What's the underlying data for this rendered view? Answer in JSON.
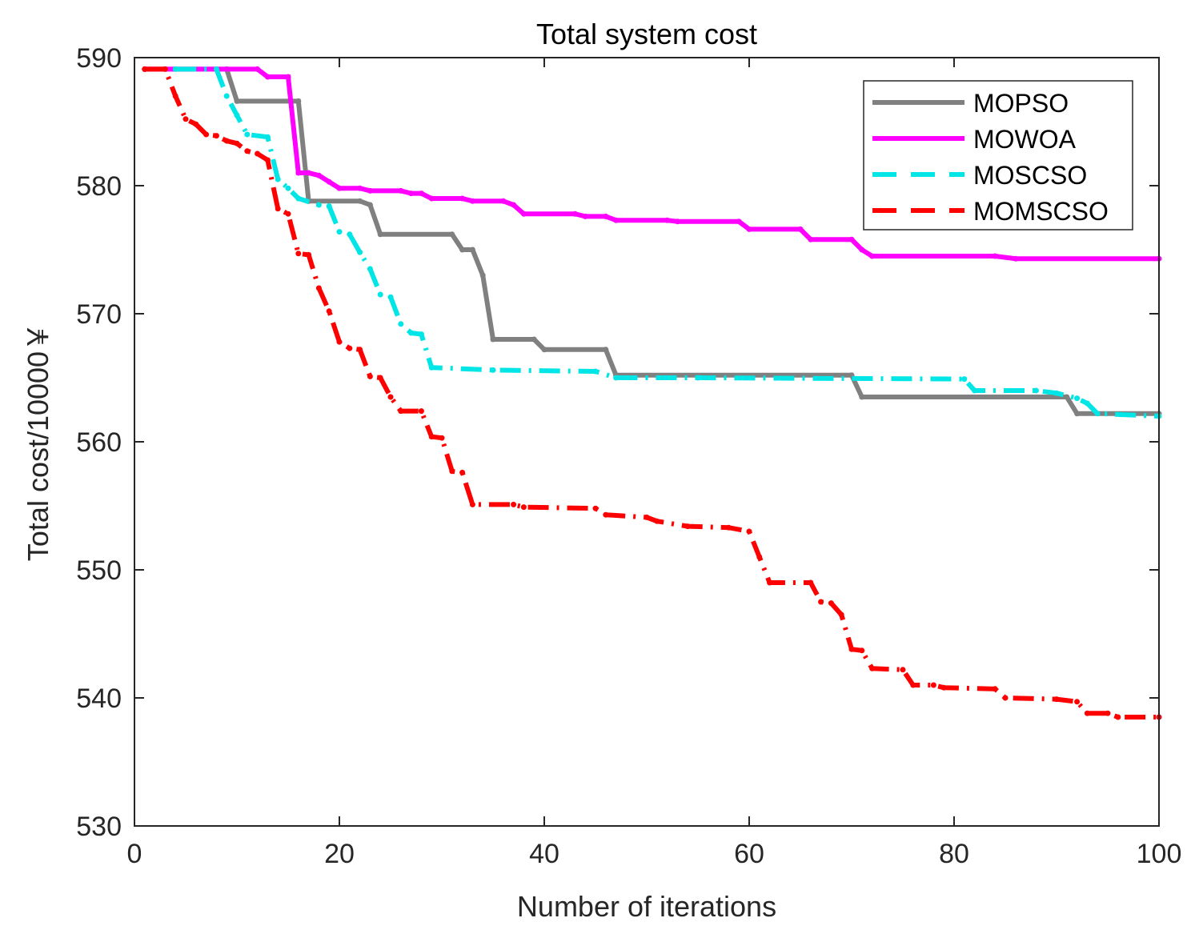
{
  "chart_data": {
    "type": "line",
    "title": "Total system cost",
    "xlabel": "Number of iterations",
    "ylabel": "Total cost/10000￥",
    "xlim": [
      0,
      100
    ],
    "ylim": [
      530,
      590
    ],
    "xticks": [
      0,
      20,
      40,
      60,
      80,
      100
    ],
    "yticks": [
      530,
      540,
      550,
      560,
      570,
      580,
      590
    ],
    "xtick_labels": [
      "0",
      "20",
      "40",
      "60",
      "80",
      "100"
    ],
    "ytick_labels": [
      "530",
      "540",
      "550",
      "560",
      "570",
      "580",
      "590"
    ],
    "legend_position": "top-right",
    "series": [
      {
        "name": "MOPSO",
        "color": "#808080",
        "dash": "solid",
        "points": [
          [
            1,
            589.1
          ],
          [
            9,
            589.1
          ],
          [
            10,
            586.6
          ],
          [
            16,
            586.6
          ],
          [
            17,
            578.8
          ],
          [
            22,
            578.8
          ],
          [
            23,
            578.5
          ],
          [
            24,
            576.2
          ],
          [
            31,
            576.2
          ],
          [
            32,
            575.0
          ],
          [
            33,
            575.0
          ],
          [
            34,
            573.0
          ],
          [
            35,
            568.0
          ],
          [
            39,
            568.0
          ],
          [
            40,
            567.2
          ],
          [
            46,
            567.2
          ],
          [
            47,
            565.2
          ],
          [
            70,
            565.2
          ],
          [
            71,
            563.5
          ],
          [
            91,
            563.5
          ],
          [
            92,
            562.2
          ],
          [
            100,
            562.2
          ]
        ]
      },
      {
        "name": "MOWOA",
        "color": "#ff00ff",
        "dash": "solid",
        "points": [
          [
            1,
            589.1
          ],
          [
            12,
            589.1
          ],
          [
            13,
            588.5
          ],
          [
            15,
            588.5
          ],
          [
            16,
            581.0
          ],
          [
            17,
            581.0
          ],
          [
            18,
            580.8
          ],
          [
            19,
            580.3
          ],
          [
            20,
            579.8
          ],
          [
            22,
            579.8
          ],
          [
            23,
            579.6
          ],
          [
            26,
            579.6
          ],
          [
            27,
            579.4
          ],
          [
            28,
            579.4
          ],
          [
            29,
            579.0
          ],
          [
            32,
            579.0
          ],
          [
            33,
            578.8
          ],
          [
            36,
            578.8
          ],
          [
            37,
            578.5
          ],
          [
            38,
            577.8
          ],
          [
            43,
            577.8
          ],
          [
            44,
            577.6
          ],
          [
            46,
            577.6
          ],
          [
            47,
            577.3
          ],
          [
            52,
            577.3
          ],
          [
            53,
            577.2
          ],
          [
            59,
            577.2
          ],
          [
            60,
            576.6
          ],
          [
            65,
            576.6
          ],
          [
            66,
            575.8
          ],
          [
            70,
            575.8
          ],
          [
            71,
            575.0
          ],
          [
            72,
            574.5
          ],
          [
            84,
            574.5
          ],
          [
            86,
            574.3
          ],
          [
            100,
            574.3
          ]
        ]
      },
      {
        "name": "MOSCSO",
        "color": "#00e5e5",
        "dash": "dashdot",
        "points": [
          [
            4,
            589.1
          ],
          [
            8,
            589.1
          ],
          [
            9,
            587.0
          ],
          [
            10,
            585.5
          ],
          [
            11,
            584.0
          ],
          [
            13,
            583.8
          ],
          [
            14,
            580.5
          ],
          [
            15,
            579.8
          ],
          [
            16,
            579.0
          ],
          [
            18,
            578.5
          ],
          [
            19,
            578.4
          ],
          [
            20,
            576.4
          ],
          [
            21,
            576.2
          ],
          [
            22,
            574.8
          ],
          [
            23,
            573.5
          ],
          [
            24,
            571.5
          ],
          [
            25,
            571.3
          ],
          [
            26,
            569.2
          ],
          [
            27,
            568.5
          ],
          [
            28,
            568.4
          ],
          [
            29,
            565.8
          ],
          [
            35,
            565.6
          ],
          [
            45,
            565.5
          ],
          [
            47,
            565.0
          ],
          [
            55,
            565.0
          ],
          [
            81,
            564.9
          ],
          [
            82,
            564.0
          ],
          [
            88,
            564.0
          ],
          [
            90,
            563.8
          ],
          [
            92,
            563.4
          ],
          [
            93,
            563.0
          ],
          [
            94,
            562.2
          ],
          [
            100,
            562.0
          ]
        ]
      },
      {
        "name": "MOMSCSO",
        "color": "#ff0000",
        "dash": "dashdot",
        "points": [
          [
            1,
            589.1
          ],
          [
            3,
            589.1
          ],
          [
            4,
            587.0
          ],
          [
            5,
            585.2
          ],
          [
            6,
            584.8
          ],
          [
            7,
            584.0
          ],
          [
            8,
            583.9
          ],
          [
            9,
            583.5
          ],
          [
            10,
            583.3
          ],
          [
            11,
            582.7
          ],
          [
            12,
            582.5
          ],
          [
            13,
            582.0
          ],
          [
            14,
            578.2
          ],
          [
            15,
            577.8
          ],
          [
            16,
            574.7
          ],
          [
            17,
            574.6
          ],
          [
            18,
            572.0
          ],
          [
            19,
            570.2
          ],
          [
            20,
            567.8
          ],
          [
            21,
            567.3
          ],
          [
            22,
            567.2
          ],
          [
            23,
            565.1
          ],
          [
            24,
            565.0
          ],
          [
            25,
            563.5
          ],
          [
            26,
            562.4
          ],
          [
            28,
            562.4
          ],
          [
            29,
            560.4
          ],
          [
            30,
            560.3
          ],
          [
            31,
            557.7
          ],
          [
            32,
            557.6
          ],
          [
            33,
            555.1
          ],
          [
            37,
            555.1
          ],
          [
            38,
            554.9
          ],
          [
            45,
            554.8
          ],
          [
            46,
            554.3
          ],
          [
            50,
            554.1
          ],
          [
            51,
            553.8
          ],
          [
            54,
            553.4
          ],
          [
            58,
            553.3
          ],
          [
            60,
            553.0
          ],
          [
            61,
            551.0
          ],
          [
            62,
            549.0
          ],
          [
            66,
            549.0
          ],
          [
            67,
            547.5
          ],
          [
            68,
            547.4
          ],
          [
            69,
            546.5
          ],
          [
            70,
            543.8
          ],
          [
            71,
            543.7
          ],
          [
            72,
            542.3
          ],
          [
            75,
            542.2
          ],
          [
            76,
            541.0
          ],
          [
            78,
            541.0
          ],
          [
            79,
            540.8
          ],
          [
            84,
            540.7
          ],
          [
            85,
            540.0
          ],
          [
            90,
            539.9
          ],
          [
            92,
            539.7
          ],
          [
            93,
            538.8
          ],
          [
            95,
            538.8
          ],
          [
            96,
            538.5
          ],
          [
            100,
            538.5
          ]
        ]
      }
    ]
  }
}
